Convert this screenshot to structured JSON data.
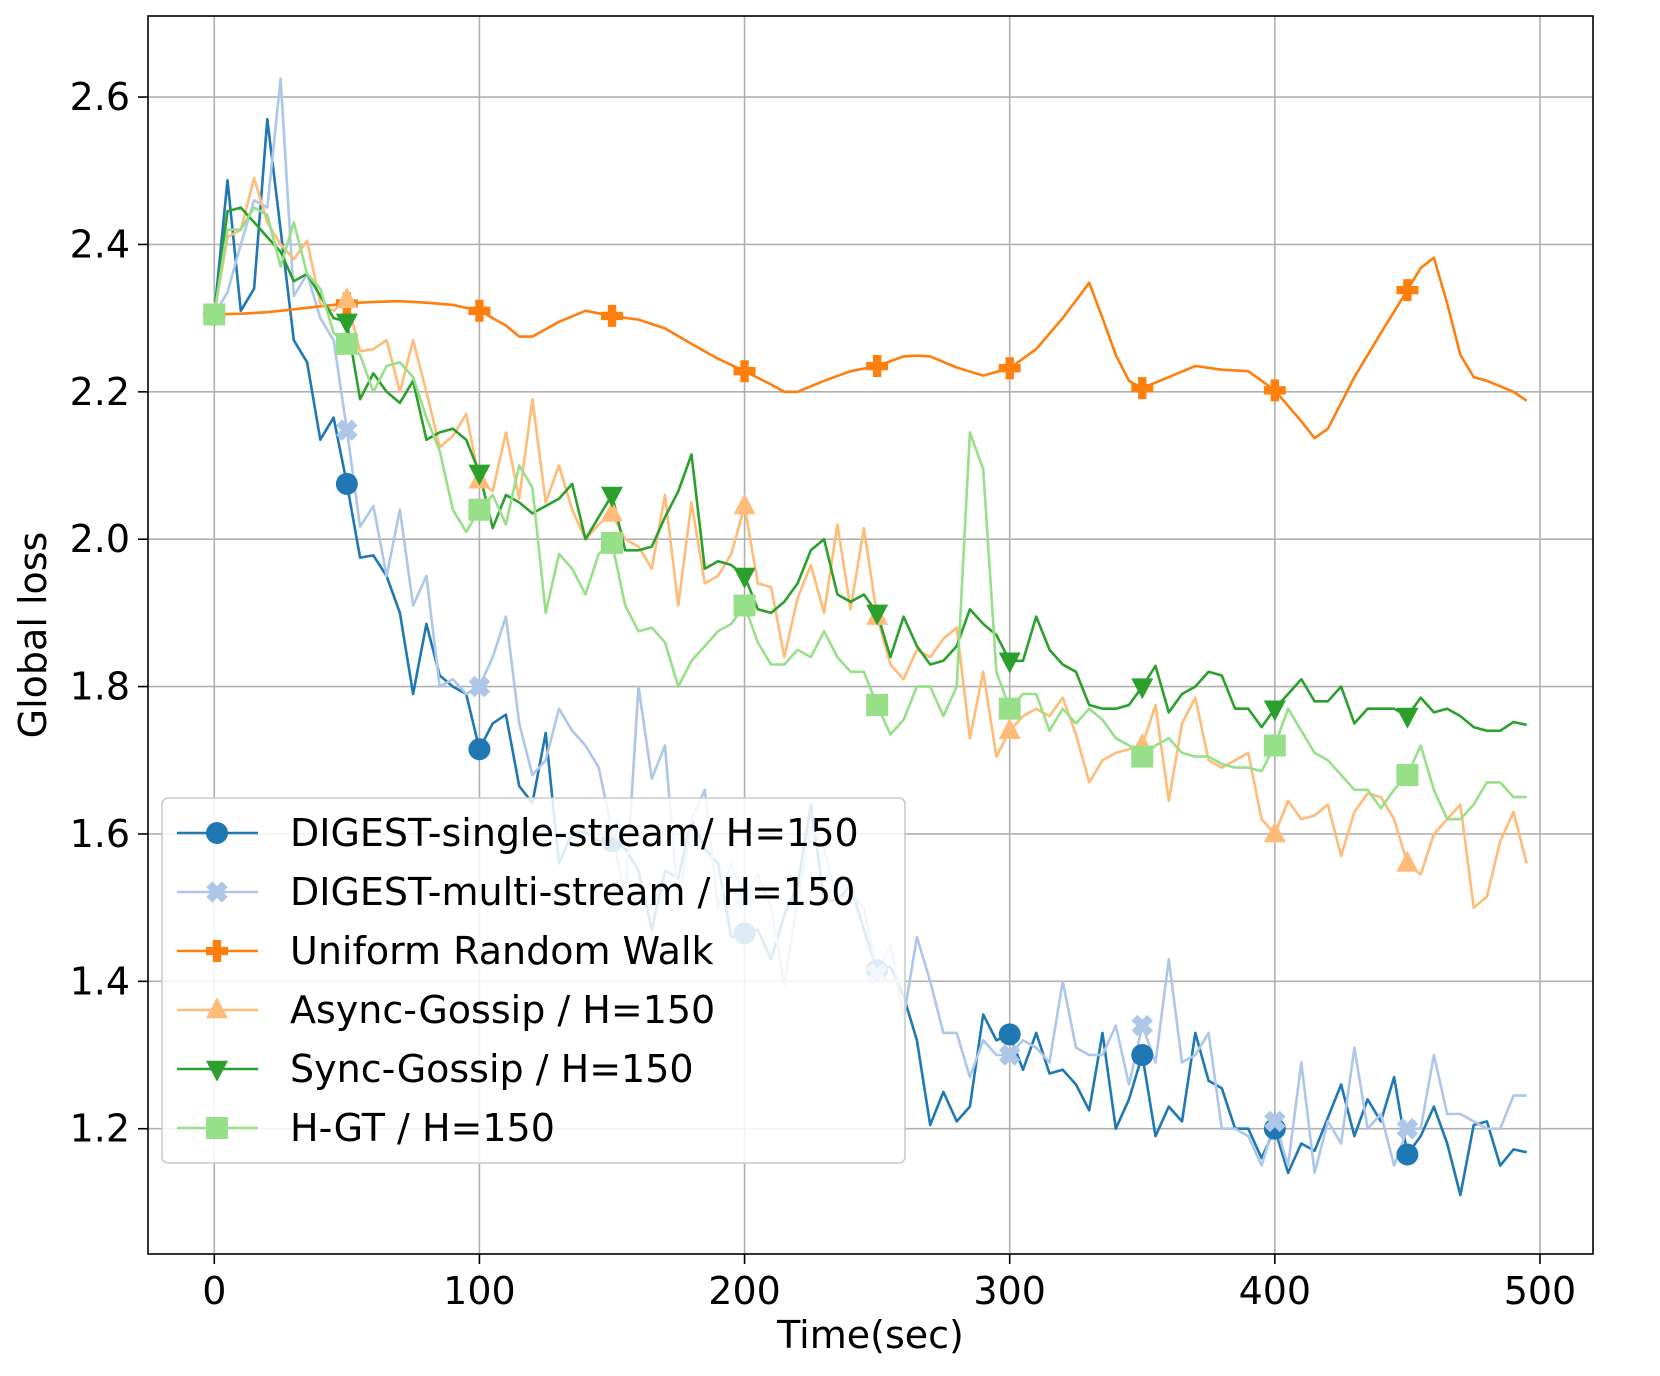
{
  "chart_data": {
    "type": "line",
    "title": "",
    "xlabel": "Time(sec)",
    "ylabel": "Global loss",
    "xlim": [
      -25,
      520
    ],
    "ylim": [
      1.03,
      2.71
    ],
    "xticks": [
      0,
      100,
      200,
      300,
      400,
      500
    ],
    "xtick_labels": [
      "0",
      "100",
      "200",
      "300",
      "400",
      "500"
    ],
    "yticks": [
      1.2,
      1.4,
      1.6,
      1.8,
      2.0,
      2.2,
      2.4,
      2.6
    ],
    "ytick_labels": [
      "1.2",
      "1.4",
      "1.6",
      "1.8",
      "2.0",
      "2.2",
      "2.4",
      "2.6"
    ],
    "grid": true,
    "legend_position": "lower-left",
    "series": [
      {
        "name": "DIGEST-single-stream/ H=150",
        "color": "#1f77b4",
        "marker": "circle",
        "x": [
          0,
          5,
          10,
          15,
          20,
          25,
          30,
          35,
          40,
          45,
          50,
          55,
          60,
          65,
          70,
          75,
          80,
          85,
          90,
          95,
          100,
          105,
          110,
          115,
          120,
          125,
          130,
          135,
          140,
          145,
          150,
          155,
          160,
          165,
          170,
          175,
          180,
          185,
          190,
          195,
          200,
          205,
          210,
          215,
          220,
          225,
          230,
          235,
          240,
          245,
          250,
          255,
          260,
          265,
          270,
          275,
          280,
          285,
          290,
          295,
          300,
          305,
          310,
          315,
          320,
          325,
          330,
          335,
          340,
          345,
          350,
          355,
          360,
          365,
          370,
          375,
          380,
          385,
          390,
          395,
          400,
          405,
          410,
          415,
          420,
          425,
          430,
          435,
          440,
          445,
          450,
          455,
          460,
          465,
          470,
          475,
          480,
          485,
          490,
          495
        ],
        "values": [
          2.305,
          2.487,
          2.31,
          2.34,
          2.57,
          2.42,
          2.27,
          2.24,
          2.135,
          2.165,
          2.075,
          1.975,
          1.978,
          1.95,
          1.9,
          1.79,
          1.885,
          1.815,
          1.8,
          1.79,
          1.715,
          1.75,
          1.762,
          1.665,
          1.642,
          1.737,
          1.56,
          1.602,
          1.603,
          1.59,
          1.59,
          1.58,
          1.55,
          1.47,
          1.55,
          1.54,
          1.62,
          1.58,
          1.56,
          1.46,
          1.465,
          1.47,
          1.43,
          1.49,
          1.53,
          1.64,
          1.51,
          1.51,
          1.53,
          1.47,
          1.415,
          1.42,
          1.38,
          1.32,
          1.205,
          1.25,
          1.21,
          1.23,
          1.355,
          1.32,
          1.328,
          1.28,
          1.33,
          1.275,
          1.28,
          1.26,
          1.225,
          1.33,
          1.2,
          1.24,
          1.3,
          1.19,
          1.23,
          1.21,
          1.33,
          1.265,
          1.255,
          1.2,
          1.2,
          1.16,
          1.2,
          1.14,
          1.18,
          1.17,
          1.215,
          1.26,
          1.19,
          1.24,
          1.21,
          1.27,
          1.165,
          1.19,
          1.23,
          1.18,
          1.11,
          1.205,
          1.21,
          1.15,
          1.172,
          1.168
        ]
      },
      {
        "name": "DIGEST-multi-stream / H=150",
        "color": "#aec7e8",
        "marker": "x",
        "x": [
          0,
          5,
          10,
          15,
          20,
          25,
          30,
          35,
          40,
          45,
          50,
          55,
          60,
          65,
          70,
          75,
          80,
          85,
          90,
          95,
          100,
          105,
          110,
          115,
          120,
          125,
          130,
          135,
          140,
          145,
          150,
          155,
          160,
          165,
          170,
          175,
          180,
          185,
          190,
          195,
          200,
          205,
          210,
          215,
          220,
          225,
          230,
          235,
          240,
          245,
          250,
          255,
          260,
          265,
          270,
          275,
          280,
          285,
          290,
          295,
          300,
          305,
          310,
          315,
          320,
          325,
          330,
          335,
          340,
          345,
          350,
          355,
          360,
          365,
          370,
          375,
          380,
          385,
          390,
          395,
          400,
          405,
          410,
          415,
          420,
          425,
          430,
          435,
          440,
          445,
          450,
          455,
          460,
          465,
          470,
          475,
          480,
          485,
          490,
          495
        ],
        "values": [
          2.305,
          2.335,
          2.4,
          2.46,
          2.45,
          2.625,
          2.33,
          2.36,
          2.3,
          2.27,
          2.148,
          2.017,
          2.045,
          1.95,
          2.04,
          1.91,
          1.95,
          1.8,
          1.81,
          1.79,
          1.8,
          1.84,
          1.895,
          1.75,
          1.68,
          1.7,
          1.77,
          1.74,
          1.72,
          1.69,
          1.605,
          1.51,
          1.8,
          1.675,
          1.72,
          1.5,
          1.62,
          1.66,
          1.5,
          1.56,
          1.515,
          1.545,
          1.5,
          1.395,
          1.51,
          1.61,
          1.58,
          1.51,
          1.52,
          1.5,
          1.41,
          1.45,
          1.35,
          1.46,
          1.4,
          1.33,
          1.33,
          1.27,
          1.32,
          1.3,
          1.3,
          1.32,
          1.31,
          1.29,
          1.4,
          1.31,
          1.3,
          1.3,
          1.34,
          1.26,
          1.34,
          1.29,
          1.43,
          1.29,
          1.3,
          1.33,
          1.2,
          1.2,
          1.19,
          1.15,
          1.21,
          1.15,
          1.29,
          1.14,
          1.21,
          1.18,
          1.31,
          1.2,
          1.22,
          1.15,
          1.2,
          1.2,
          1.3,
          1.22,
          1.22,
          1.21,
          1.2,
          1.2,
          1.245,
          1.245
        ]
      },
      {
        "name": "Uniform Random Walk",
        "color": "#ff7f0e",
        "marker": "plus",
        "x": [
          0,
          10,
          20,
          30,
          40,
          50,
          60,
          70,
          80,
          90,
          100,
          110,
          115,
          120,
          130,
          140,
          150,
          160,
          170,
          180,
          190,
          200,
          210,
          215,
          220,
          230,
          240,
          250,
          260,
          265,
          270,
          280,
          290,
          300,
          310,
          320,
          330,
          335,
          340,
          345,
          350,
          360,
          370,
          380,
          390,
          400,
          410,
          415,
          420,
          430,
          440,
          450,
          455,
          460,
          465,
          470,
          475,
          480,
          490,
          495
        ],
        "values": [
          2.305,
          2.306,
          2.308,
          2.312,
          2.316,
          2.32,
          2.322,
          2.323,
          2.321,
          2.318,
          2.31,
          2.29,
          2.275,
          2.275,
          2.295,
          2.31,
          2.303,
          2.298,
          2.286,
          2.265,
          2.245,
          2.228,
          2.21,
          2.2,
          2.2,
          2.215,
          2.228,
          2.235,
          2.248,
          2.249,
          2.248,
          2.233,
          2.222,
          2.232,
          2.258,
          2.3,
          2.348,
          2.3,
          2.25,
          2.215,
          2.205,
          2.22,
          2.235,
          2.23,
          2.228,
          2.202,
          2.16,
          2.137,
          2.15,
          2.22,
          2.28,
          2.338,
          2.368,
          2.382,
          2.32,
          2.25,
          2.22,
          2.215,
          2.2,
          2.188
        ]
      },
      {
        "name": "Async-Gossip / H=150",
        "color": "#ffbb78",
        "marker": "triangle-up",
        "x": [
          0,
          5,
          10,
          15,
          20,
          25,
          30,
          35,
          40,
          45,
          50,
          55,
          60,
          65,
          70,
          75,
          80,
          85,
          90,
          95,
          100,
          105,
          110,
          115,
          120,
          125,
          130,
          135,
          140,
          145,
          150,
          155,
          160,
          165,
          170,
          175,
          180,
          185,
          190,
          195,
          200,
          205,
          210,
          215,
          220,
          225,
          230,
          235,
          240,
          245,
          250,
          255,
          260,
          265,
          270,
          275,
          280,
          285,
          290,
          295,
          300,
          305,
          310,
          315,
          320,
          325,
          330,
          335,
          340,
          345,
          350,
          355,
          360,
          365,
          370,
          375,
          380,
          385,
          390,
          395,
          400,
          405,
          410,
          415,
          420,
          425,
          430,
          435,
          440,
          445,
          450,
          455,
          460,
          465,
          470,
          475,
          480,
          485,
          490,
          495
        ],
        "values": [
          2.305,
          2.41,
          2.42,
          2.49,
          2.43,
          2.4,
          2.38,
          2.405,
          2.32,
          2.31,
          2.325,
          2.255,
          2.258,
          2.27,
          2.2,
          2.27,
          2.2,
          2.125,
          2.14,
          2.17,
          2.08,
          2.065,
          2.145,
          2.055,
          2.19,
          2.05,
          2.1,
          2.04,
          2.0,
          2.02,
          2.035,
          2.0,
          1.99,
          1.96,
          2.06,
          1.91,
          2.05,
          1.94,
          1.95,
          1.98,
          2.045,
          1.94,
          1.935,
          1.84,
          1.92,
          1.965,
          1.9,
          2.02,
          1.905,
          2.015,
          1.895,
          1.83,
          1.81,
          1.85,
          1.84,
          1.865,
          1.88,
          1.73,
          1.82,
          1.705,
          1.74,
          1.76,
          1.77,
          1.76,
          1.785,
          1.735,
          1.67,
          1.7,
          1.71,
          1.715,
          1.72,
          1.775,
          1.645,
          1.75,
          1.785,
          1.7,
          1.69,
          1.7,
          1.71,
          1.62,
          1.6,
          1.645,
          1.62,
          1.625,
          1.64,
          1.57,
          1.63,
          1.655,
          1.65,
          1.62,
          1.56,
          1.545,
          1.6,
          1.62,
          1.64,
          1.5,
          1.515,
          1.59,
          1.63,
          1.56
        ]
      },
      {
        "name": "Sync-Gossip / H=150",
        "color": "#2ca02c",
        "marker": "triangle-down",
        "x": [
          0,
          5,
          10,
          15,
          20,
          25,
          30,
          35,
          40,
          45,
          50,
          55,
          60,
          65,
          70,
          75,
          80,
          85,
          90,
          95,
          100,
          105,
          110,
          115,
          120,
          125,
          130,
          135,
          140,
          145,
          150,
          155,
          160,
          165,
          170,
          175,
          180,
          185,
          190,
          195,
          200,
          205,
          210,
          215,
          220,
          225,
          230,
          235,
          240,
          245,
          250,
          255,
          260,
          265,
          270,
          275,
          280,
          285,
          290,
          295,
          300,
          305,
          310,
          315,
          320,
          325,
          330,
          335,
          340,
          345,
          350,
          355,
          360,
          365,
          370,
          375,
          380,
          385,
          390,
          395,
          400,
          405,
          410,
          415,
          420,
          425,
          430,
          435,
          440,
          445,
          450,
          455,
          460,
          465,
          470,
          475,
          480,
          485,
          490,
          495
        ],
        "values": [
          2.305,
          2.445,
          2.45,
          2.43,
          2.41,
          2.39,
          2.35,
          2.36,
          2.33,
          2.3,
          2.295,
          2.19,
          2.225,
          2.2,
          2.185,
          2.215,
          2.135,
          2.145,
          2.15,
          2.135,
          2.09,
          2.015,
          2.06,
          2.05,
          2.035,
          2.045,
          2.055,
          2.075,
          2.0,
          2.03,
          2.06,
          1.985,
          1.985,
          1.99,
          2.03,
          2.065,
          2.115,
          1.96,
          1.97,
          1.965,
          1.95,
          1.905,
          1.9,
          1.915,
          1.94,
          1.985,
          2.0,
          1.925,
          1.915,
          1.925,
          1.9,
          1.84,
          1.895,
          1.855,
          1.83,
          1.835,
          1.855,
          1.905,
          1.885,
          1.87,
          1.835,
          1.835,
          1.895,
          1.85,
          1.83,
          1.82,
          1.775,
          1.77,
          1.77,
          1.775,
          1.8,
          1.828,
          1.765,
          1.79,
          1.8,
          1.82,
          1.815,
          1.77,
          1.77,
          1.745,
          1.77,
          1.79,
          1.81,
          1.78,
          1.78,
          1.8,
          1.75,
          1.77,
          1.77,
          1.77,
          1.76,
          1.785,
          1.765,
          1.77,
          1.76,
          1.745,
          1.74,
          1.74,
          1.752,
          1.748
        ]
      },
      {
        "name": "H-GT / H=150",
        "color": "#98df8a",
        "marker": "square",
        "x": [
          0,
          5,
          10,
          15,
          20,
          25,
          30,
          35,
          40,
          45,
          50,
          55,
          60,
          65,
          70,
          75,
          80,
          85,
          90,
          95,
          100,
          105,
          110,
          115,
          120,
          125,
          130,
          135,
          140,
          145,
          150,
          155,
          160,
          165,
          170,
          175,
          180,
          185,
          190,
          195,
          200,
          205,
          210,
          215,
          220,
          225,
          230,
          235,
          240,
          245,
          250,
          255,
          260,
          265,
          270,
          275,
          280,
          285,
          290,
          295,
          300,
          305,
          310,
          315,
          320,
          325,
          330,
          335,
          340,
          345,
          350,
          355,
          360,
          365,
          370,
          375,
          380,
          385,
          390,
          395,
          400,
          405,
          410,
          415,
          420,
          425,
          430,
          435,
          440,
          445,
          450,
          455,
          460,
          465,
          470,
          475,
          480,
          485,
          490,
          495
        ],
        "values": [
          2.305,
          2.42,
          2.42,
          2.45,
          2.44,
          2.37,
          2.43,
          2.36,
          2.34,
          2.28,
          2.265,
          2.25,
          2.2,
          2.235,
          2.24,
          2.22,
          2.165,
          2.12,
          2.04,
          2.01,
          2.04,
          2.06,
          2.02,
          2.1,
          2.07,
          1.9,
          1.98,
          1.96,
          1.925,
          1.98,
          1.995,
          1.91,
          1.875,
          1.88,
          1.86,
          1.8,
          1.835,
          1.855,
          1.875,
          1.885,
          1.91,
          1.86,
          1.83,
          1.83,
          1.85,
          1.84,
          1.875,
          1.84,
          1.82,
          1.82,
          1.775,
          1.735,
          1.755,
          1.8,
          1.8,
          1.76,
          1.8,
          2.145,
          2.095,
          1.82,
          1.77,
          1.79,
          1.79,
          1.74,
          1.77,
          1.75,
          1.77,
          1.755,
          1.73,
          1.72,
          1.705,
          1.72,
          1.73,
          1.71,
          1.705,
          1.705,
          1.695,
          1.69,
          1.69,
          1.685,
          1.72,
          1.77,
          1.74,
          1.71,
          1.7,
          1.68,
          1.66,
          1.66,
          1.635,
          1.66,
          1.68,
          1.72,
          1.66,
          1.62,
          1.62,
          1.64,
          1.67,
          1.67,
          1.65,
          1.65
        ]
      }
    ]
  }
}
